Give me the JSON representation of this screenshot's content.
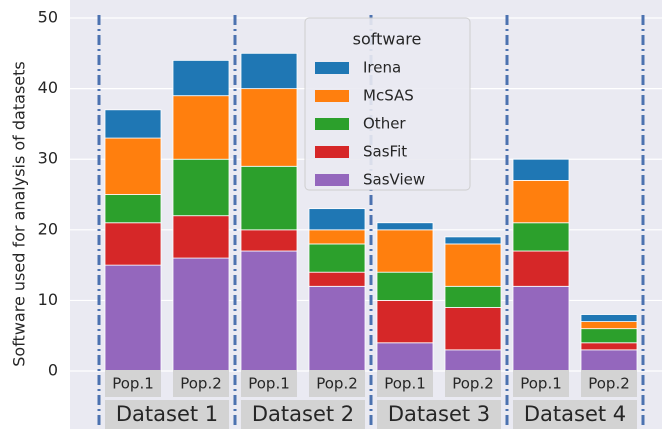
{
  "chart_data": {
    "type": "stacked_bar",
    "ylabel": "Software used for analysis of datasets",
    "categories": [
      "Pop.1",
      "Pop.2",
      "Pop.1",
      "Pop.2",
      "Pop.1",
      "Pop.2",
      "Pop.1",
      "Pop.2"
    ],
    "groups": [
      "Dataset 1",
      "Dataset 2",
      "Dataset 3",
      "Dataset 4"
    ],
    "series": [
      {
        "name": "SasView",
        "color": "#9467bd",
        "values": [
          15,
          16,
          17,
          12,
          4,
          3,
          12,
          3
        ]
      },
      {
        "name": "SasFit",
        "color": "#d62728",
        "values": [
          6,
          6,
          3,
          2,
          6,
          6,
          5,
          1
        ]
      },
      {
        "name": "Other",
        "color": "#2ca02c",
        "values": [
          4,
          8,
          9,
          4,
          4,
          3,
          4,
          2
        ]
      },
      {
        "name": "McSAS",
        "color": "#ff7f0e",
        "values": [
          8,
          9,
          11,
          2,
          6,
          6,
          6,
          1
        ]
      },
      {
        "name": "Irena",
        "color": "#1f77b4",
        "values": [
          4,
          5,
          5,
          3,
          1,
          1,
          3,
          1
        ]
      }
    ],
    "legend_title": "software",
    "legend": "upper center",
    "ylim": [
      -8,
      50.5
    ],
    "yticks": [
      0,
      10,
      20,
      30,
      40,
      50
    ],
    "grid": true
  }
}
